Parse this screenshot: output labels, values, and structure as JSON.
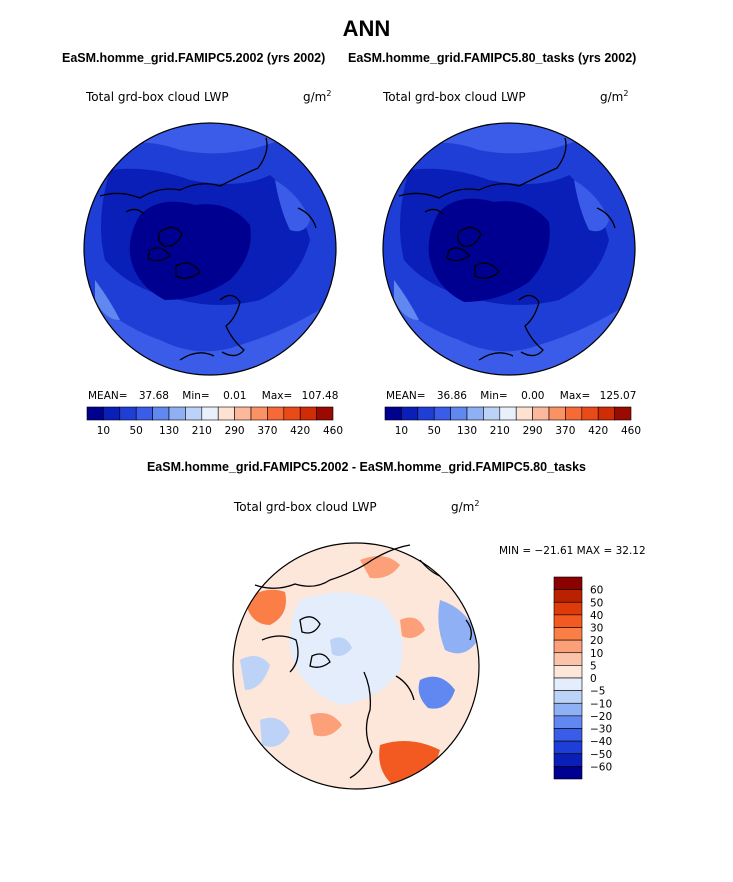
{
  "figure": {
    "title": "ANN"
  },
  "chart_data": [
    {
      "type": "heatmap",
      "projection": "north polar stereographic",
      "title": "EaSM.homme_grid.FAMIPC5.2002 (yrs 2002)",
      "variable": "Total grd-box cloud LWP",
      "units": "g/m",
      "units_exp": "2",
      "stats": {
        "mean_label": "MEAN=",
        "mean": "37.68",
        "min_label": "Min=",
        "min": "0.01",
        "max_label": "Max=",
        "max": "107.48"
      },
      "colorbar": {
        "orientation": "horizontal",
        "ticks": [
          "10",
          "50",
          "130",
          "210",
          "290",
          "370",
          "420",
          "460"
        ],
        "colors": [
          "#000090",
          "#0a1fb8",
          "#1f3ed6",
          "#3a5ce8",
          "#6088f0",
          "#8fb0f4",
          "#bcd2f6",
          "#e8f0fb",
          "#fde2d2",
          "#fcb89a",
          "#fb9264",
          "#f56a36",
          "#ea4a18",
          "#d02c06",
          "#9a0a00"
        ]
      }
    },
    {
      "type": "heatmap",
      "projection": "north polar stereographic",
      "title": "EaSM.homme_grid.FAMIPC5.80_tasks (yrs 2002)",
      "variable": "Total grd-box cloud LWP",
      "units": "g/m",
      "units_exp": "2",
      "stats": {
        "mean_label": "MEAN=",
        "mean": "36.86",
        "min_label": "Min=",
        "min": "0.00",
        "max_label": "Max=",
        "max": "125.07"
      },
      "colorbar": {
        "orientation": "horizontal",
        "ticks": [
          "10",
          "50",
          "130",
          "210",
          "290",
          "370",
          "420",
          "460"
        ],
        "colors": [
          "#000090",
          "#0a1fb8",
          "#1f3ed6",
          "#3a5ce8",
          "#6088f0",
          "#8fb0f4",
          "#bcd2f6",
          "#e8f0fb",
          "#fde2d2",
          "#fcb89a",
          "#fb9264",
          "#f56a36",
          "#ea4a18",
          "#d02c06",
          "#9a0a00"
        ]
      }
    },
    {
      "type": "heatmap",
      "projection": "north polar stereographic",
      "title": "EaSM.homme_grid.FAMIPC5.2002 - EaSM.homme_grid.FAMIPC5.80_tasks",
      "variable": "Total grd-box cloud LWP",
      "units": "g/m",
      "units_exp": "2",
      "stats": {
        "text": "MIN = −21.61 MAX =  32.12",
        "min": -21.61,
        "max": 32.12
      },
      "colorbar": {
        "orientation": "vertical",
        "ticks": [
          "60",
          "50",
          "40",
          "30",
          "20",
          "10",
          "5",
          "0",
          "−5",
          "−10",
          "−20",
          "−30",
          "−40",
          "−50",
          "−60"
        ],
        "colors": [
          "#8c0000",
          "#b82200",
          "#de3a0a",
          "#f25a22",
          "#fb7e46",
          "#fca07a",
          "#fdc3aa",
          "#fde6da",
          "#e3edfb",
          "#bcd2f6",
          "#8fb0f4",
          "#6088f0",
          "#3a5ce8",
          "#1f3ed6",
          "#0a1fb8",
          "#000090"
        ]
      }
    }
  ]
}
